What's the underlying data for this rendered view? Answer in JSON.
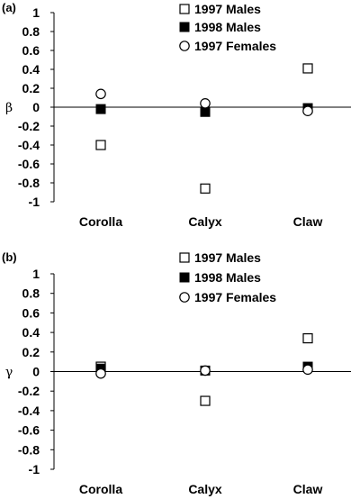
{
  "chart_data": [
    {
      "type": "scatter",
      "panel": "(a)",
      "ylabel": "β",
      "ylim": [
        -1,
        1
      ],
      "yticks": [
        1,
        0.8,
        0.6,
        0.4,
        0.2,
        0,
        -0.2,
        -0.4,
        -0.6,
        -0.8,
        -1
      ],
      "categories": [
        "Corolla",
        "Calyx",
        "Claw"
      ],
      "legend": "top-center",
      "series": [
        {
          "name": "1997 Males",
          "marker": "open-square",
          "values": [
            -0.4,
            -0.86,
            0.41
          ]
        },
        {
          "name": "1998 Males",
          "marker": "filled-square",
          "values": [
            -0.02,
            -0.05,
            -0.01
          ]
        },
        {
          "name": "1997 Females",
          "marker": "open-circle",
          "values": [
            0.14,
            0.04,
            -0.04
          ]
        }
      ]
    },
    {
      "type": "scatter",
      "panel": "(b)",
      "ylabel": "γ",
      "ylim": [
        -1,
        1
      ],
      "yticks": [
        1,
        0.8,
        0.6,
        0.4,
        0.2,
        0,
        -0.2,
        -0.4,
        -0.6,
        -0.8,
        -1
      ],
      "categories": [
        "Corolla",
        "Calyx",
        "Claw"
      ],
      "legend": "top-center",
      "series": [
        {
          "name": "1997 Males",
          "marker": "open-square",
          "values": [
            0.05,
            -0.3,
            0.34
          ]
        },
        {
          "name": "1998 Males",
          "marker": "filled-square",
          "values": [
            0.03,
            0.01,
            0.05
          ]
        },
        {
          "name": "1997 Females",
          "marker": "open-circle",
          "values": [
            -0.02,
            0.01,
            0.02
          ]
        }
      ]
    }
  ]
}
